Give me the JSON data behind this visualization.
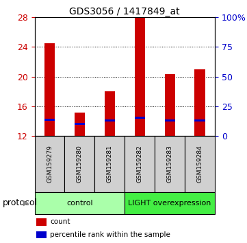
{
  "title": "GDS3056 / 1417849_at",
  "samples": [
    "GSM159279",
    "GSM159280",
    "GSM159281",
    "GSM159282",
    "GSM159283",
    "GSM159284"
  ],
  "count_values": [
    24.5,
    15.2,
    18.0,
    28.0,
    20.3,
    21.0
  ],
  "percentile_values": [
    14.2,
    13.6,
    14.1,
    14.5,
    14.1,
    14.1
  ],
  "ymin": 12,
  "ymax": 28,
  "yticks_left": [
    12,
    16,
    20,
    24,
    28
  ],
  "yticks_right": [
    0,
    25,
    50,
    75,
    100
  ],
  "ytick_labels_right": [
    "0",
    "25",
    "50",
    "75",
    "100%"
  ],
  "bar_color": "#cc0000",
  "marker_color": "#0000cc",
  "groups": [
    {
      "label": "control",
      "indices": [
        0,
        1,
        2
      ],
      "color": "#aaffaa"
    },
    {
      "label": "LIGHT overexpression",
      "indices": [
        3,
        4,
        5
      ],
      "color": "#44ee44"
    }
  ],
  "group_label": "protocol",
  "legend_items": [
    {
      "color": "#cc0000",
      "label": "count"
    },
    {
      "color": "#0000cc",
      "label": "percentile rank within the sample"
    }
  ],
  "axis_color_left": "#cc0000",
  "axis_color_right": "#0000cc",
  "sample_box_color": "#d0d0d0",
  "bar_width": 0.35
}
